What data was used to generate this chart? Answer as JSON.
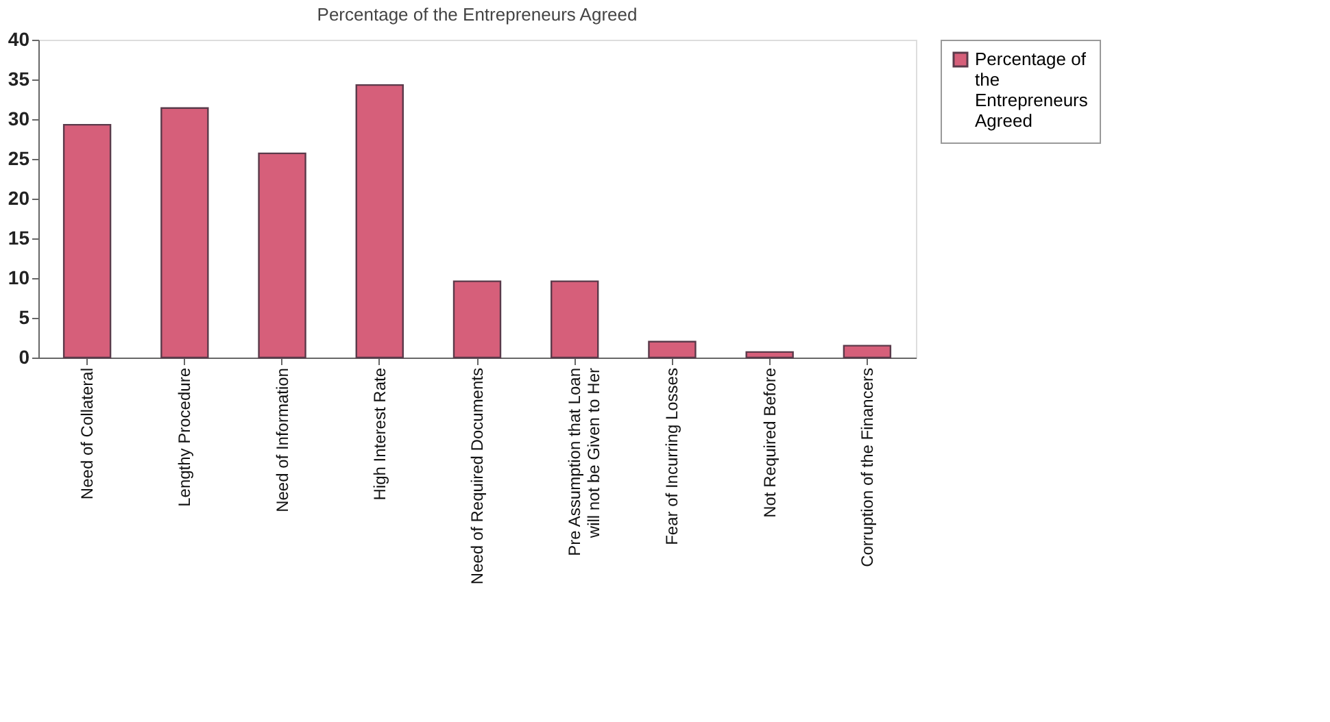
{
  "chart_data": {
    "type": "bar",
    "title": "Percentage of the Entrepreneurs Agreed",
    "categories": [
      "Need of Collateral",
      "Lengthy Procedure",
      "Need of Information",
      "High Interest Rate",
      "Need of Required Documents",
      "Pre Assumption that Loan will not be Given to Her",
      "Fear of Incurring Losses",
      "Not Required Before",
      "Corruption of the Financers"
    ],
    "series": [
      {
        "name": "Percentage of the Entrepreneurs Agreed",
        "color": "#d65f7a",
        "values": [
          29.3,
          31.4,
          25.7,
          34.3,
          9.6,
          9.6,
          2.0,
          0.7,
          1.5
        ]
      }
    ],
    "ylim": [
      0,
      40
    ],
    "yticks": [
      0,
      5,
      10,
      15,
      20,
      25,
      30,
      35,
      40
    ],
    "grid": false,
    "legend": "right"
  }
}
